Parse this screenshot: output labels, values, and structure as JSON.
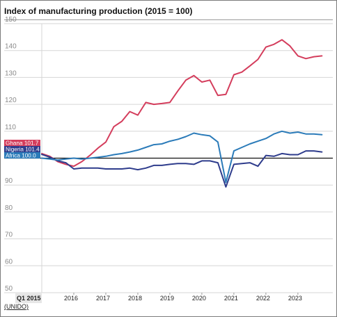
{
  "source": "(UNIDO)",
  "colors": {
    "ghana": "#d43d5c",
    "nigeria": "#2e3c8c",
    "africa": "#2b7bb9",
    "grid": "#d6d6d6",
    "reference": "#111111",
    "tick_text": "#8a8a8a",
    "year_text": "#222222"
  },
  "chart_data": {
    "type": "line",
    "title": "Index of manufacturing production (2015 = 100)",
    "xlabel": "",
    "ylabel": "",
    "ylim": [
      50,
      150
    ],
    "yticks": [
      50,
      60,
      70,
      80,
      90,
      100,
      110,
      120,
      130,
      140,
      150
    ],
    "reference_line": 100,
    "grid": true,
    "x_start": "Q1 2015",
    "x_tick_labels": [
      "Q1 2015",
      "2016",
      "2017",
      "2018",
      "2019",
      "2020",
      "2021",
      "2022",
      "2023"
    ],
    "x": [
      "2015-01",
      "2015-02",
      "2015-03",
      "2015-04",
      "2015-05",
      "2015-06",
      "2015-07",
      "2015-08",
      "2015-09",
      "2015-10",
      "2015-11",
      "2015-12",
      "2016-01",
      "2016-02",
      "2016-03",
      "2016-04",
      "2016-05",
      "2016-06",
      "2016-07",
      "2016-08",
      "2016-09",
      "2016-10",
      "2016-11",
      "2016-12",
      "2017-01",
      "2017-02",
      "2017-03",
      "2017-04",
      "2017-05",
      "2017-06",
      "2017-07",
      "2017-08",
      "2017-09",
      "2017-10",
      "2017-11",
      "2017-12",
      "2018-01",
      "2018-02",
      "2018-03",
      "2018-04",
      "2018-05",
      "2018-06",
      "2018-07",
      "2018-08",
      "2018-09",
      "2018-10",
      "2018-11",
      "2018-12",
      "2019-01",
      "2019-02",
      "2019-03",
      "2019-04",
      "2019-05",
      "2019-06",
      "2019-07",
      "2019-08",
      "2019-09",
      "2019-10",
      "2019-11",
      "2019-12",
      "2020-01",
      "2020-02",
      "2020-03",
      "2020-04",
      "2020-05",
      "2020-06",
      "2020-07",
      "2020-08",
      "2020-09",
      "2020-10",
      "2020-11",
      "2020-12",
      "2021-01",
      "2021-02",
      "2021-03",
      "2021-04",
      "2021-05",
      "2021-06",
      "2021-07",
      "2021-08",
      "2021-09",
      "2021-10",
      "2021-11",
      "2021-12",
      "2022-01",
      "2022-02",
      "2022-03",
      "2022-04",
      "2022-05",
      "2022-06",
      "2022-07",
      "2022-08",
      "2022-09",
      "2022-10",
      "2022-11",
      "2022-12",
      "2023-01",
      "2023-02",
      "2023-03",
      "2023-04",
      "2023-05",
      "2023-06",
      "2023-07",
      "2023-08",
      "2023-09",
      "2023-10",
      "2023-11",
      "2023-12"
    ],
    "series": [
      {
        "name": "Ghana",
        "label": "Ghana 101.7",
        "color": "#d43d5c",
        "points": [
          [
            "2015-01",
            101.7
          ],
          [
            "2015-04",
            100.7
          ],
          [
            "2015-07",
            98.7
          ],
          [
            "2015-10",
            97.7
          ],
          [
            "2016-01",
            97.0
          ],
          [
            "2016-04",
            98.7
          ],
          [
            "2016-07",
            101.0
          ],
          [
            "2016-10",
            103.7
          ],
          [
            "2017-01",
            106.0
          ],
          [
            "2017-04",
            111.7
          ],
          [
            "2017-07",
            113.7
          ],
          [
            "2017-10",
            117.3
          ],
          [
            "2018-01",
            116.0
          ],
          [
            "2018-04",
            120.7
          ],
          [
            "2018-07",
            120.0
          ],
          [
            "2018-10",
            120.3
          ],
          [
            "2019-01",
            120.7
          ],
          [
            "2019-04",
            125.0
          ],
          [
            "2019-07",
            129.0
          ],
          [
            "2019-10",
            130.7
          ],
          [
            "2020-01",
            128.3
          ],
          [
            "2020-04",
            129.0
          ],
          [
            "2020-07",
            123.3
          ],
          [
            "2020-10",
            123.7
          ],
          [
            "2021-01",
            131.0
          ],
          [
            "2021-04",
            132.0
          ],
          [
            "2021-07",
            134.3
          ],
          [
            "2021-10",
            136.7
          ],
          [
            "2022-01",
            141.3
          ],
          [
            "2022-04",
            142.3
          ],
          [
            "2022-07",
            144.0
          ],
          [
            "2022-10",
            141.7
          ],
          [
            "2023-01",
            138.0
          ],
          [
            "2023-04",
            137.0
          ],
          [
            "2023-07",
            137.7
          ],
          [
            "2023-10",
            138.0
          ]
        ]
      },
      {
        "name": "Nigeria",
        "label": "Nigeria 101.4",
        "color": "#2e3c8c",
        "points": [
          [
            "2015-01",
            101.4
          ],
          [
            "2015-04",
            100.4
          ],
          [
            "2015-07",
            99.0
          ],
          [
            "2015-10",
            98.3
          ],
          [
            "2016-01",
            96.0
          ],
          [
            "2016-04",
            96.3
          ],
          [
            "2016-07",
            96.3
          ],
          [
            "2016-10",
            96.3
          ],
          [
            "2017-01",
            96.0
          ],
          [
            "2017-04",
            96.0
          ],
          [
            "2017-07",
            96.0
          ],
          [
            "2017-10",
            96.3
          ],
          [
            "2018-01",
            95.7
          ],
          [
            "2018-04",
            96.3
          ],
          [
            "2018-07",
            97.3
          ],
          [
            "2018-10",
            97.3
          ],
          [
            "2019-01",
            97.7
          ],
          [
            "2019-04",
            98.0
          ],
          [
            "2019-07",
            98.0
          ],
          [
            "2019-10",
            97.7
          ],
          [
            "2020-01",
            99.0
          ],
          [
            "2020-04",
            99.0
          ],
          [
            "2020-07",
            98.3
          ],
          [
            "2020-10",
            89.3
          ],
          [
            "2021-01",
            97.7
          ],
          [
            "2021-04",
            98.0
          ],
          [
            "2021-07",
            98.3
          ],
          [
            "2021-10",
            97.0
          ],
          [
            "2022-01",
            101.0
          ],
          [
            "2022-04",
            100.7
          ],
          [
            "2022-07",
            101.7
          ],
          [
            "2022-10",
            101.3
          ],
          [
            "2023-01",
            101.3
          ],
          [
            "2023-04",
            102.7
          ],
          [
            "2023-07",
            102.7
          ],
          [
            "2023-10",
            102.3
          ]
        ]
      },
      {
        "name": "Africa",
        "label": "Africa 100.0",
        "color": "#2b7bb9",
        "points": [
          [
            "2015-01",
            100.0
          ],
          [
            "2015-04",
            99.7
          ],
          [
            "2015-07",
            99.3
          ],
          [
            "2015-10",
            99.7
          ],
          [
            "2016-01",
            100.0
          ],
          [
            "2016-04",
            99.7
          ],
          [
            "2016-07",
            100.0
          ],
          [
            "2016-10",
            100.3
          ],
          [
            "2017-01",
            100.7
          ],
          [
            "2017-04",
            101.3
          ],
          [
            "2017-07",
            101.7
          ],
          [
            "2017-10",
            102.3
          ],
          [
            "2018-01",
            103.0
          ],
          [
            "2018-04",
            104.0
          ],
          [
            "2018-07",
            105.0
          ],
          [
            "2018-10",
            105.3
          ],
          [
            "2019-01",
            106.3
          ],
          [
            "2019-04",
            107.0
          ],
          [
            "2019-07",
            108.0
          ],
          [
            "2019-10",
            109.3
          ],
          [
            "2020-01",
            108.7
          ],
          [
            "2020-04",
            108.3
          ],
          [
            "2020-07",
            106.0
          ],
          [
            "2020-10",
            91.0
          ],
          [
            "2021-01",
            102.7
          ],
          [
            "2021-04",
            104.0
          ],
          [
            "2021-07",
            105.3
          ],
          [
            "2021-10",
            106.3
          ],
          [
            "2022-01",
            107.3
          ],
          [
            "2022-04",
            109.0
          ],
          [
            "2022-07",
            110.0
          ],
          [
            "2022-10",
            109.3
          ],
          [
            "2023-01",
            109.7
          ],
          [
            "2023-04",
            109.0
          ],
          [
            "2023-07",
            109.0
          ],
          [
            "2023-10",
            108.7
          ]
        ]
      }
    ]
  }
}
